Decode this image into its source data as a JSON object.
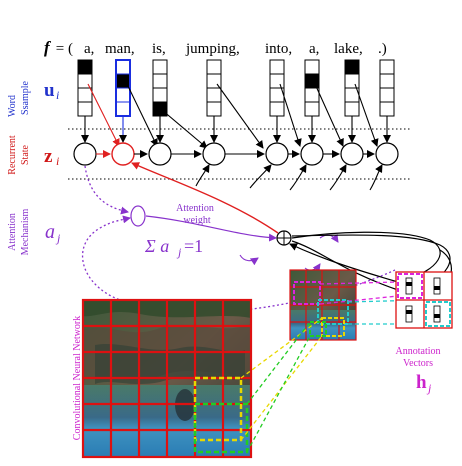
{
  "caption": {
    "f_symbol": "f",
    "equals": " = (",
    "words": [
      "a,",
      "man,",
      "is,",
      "jumping,",
      "into,",
      "a,",
      "lake,",
      ".)"
    ]
  },
  "rows": {
    "word_sample": {
      "label_line1": "Word",
      "label_line2": "Ssample",
      "symbol": "u",
      "subscript": "i"
    },
    "recurrent_state": {
      "label_line1": "Recurrent",
      "label_line2": "State",
      "symbol": "z",
      "subscript": "i"
    },
    "attention": {
      "label_line1": "Attention",
      "label_line2": "Mechanism",
      "symbol": "a",
      "subscript": "j"
    }
  },
  "attention_weight": {
    "line1": "Attention",
    "line2": "weight"
  },
  "sum_constraint": {
    "sigma": "Σ a",
    "subscript": "j",
    "rest": "=1"
  },
  "annotation": {
    "line1": "Annotation",
    "line2": "Vectors",
    "symbol": "h",
    "subscript": "j"
  },
  "cnn_label": "Convolutional Neural Network",
  "colors": {
    "word_label": "#2233cc",
    "state_label": "#d01818",
    "attention_label": "#8833cc",
    "annotation_label": "#cc22cc",
    "grid_red": "#dd1111",
    "yellow": "#e8d800",
    "green": "#22cc22",
    "cyan": "#22cccc",
    "magenta": "#dd22dd",
    "black": "#000000"
  }
}
